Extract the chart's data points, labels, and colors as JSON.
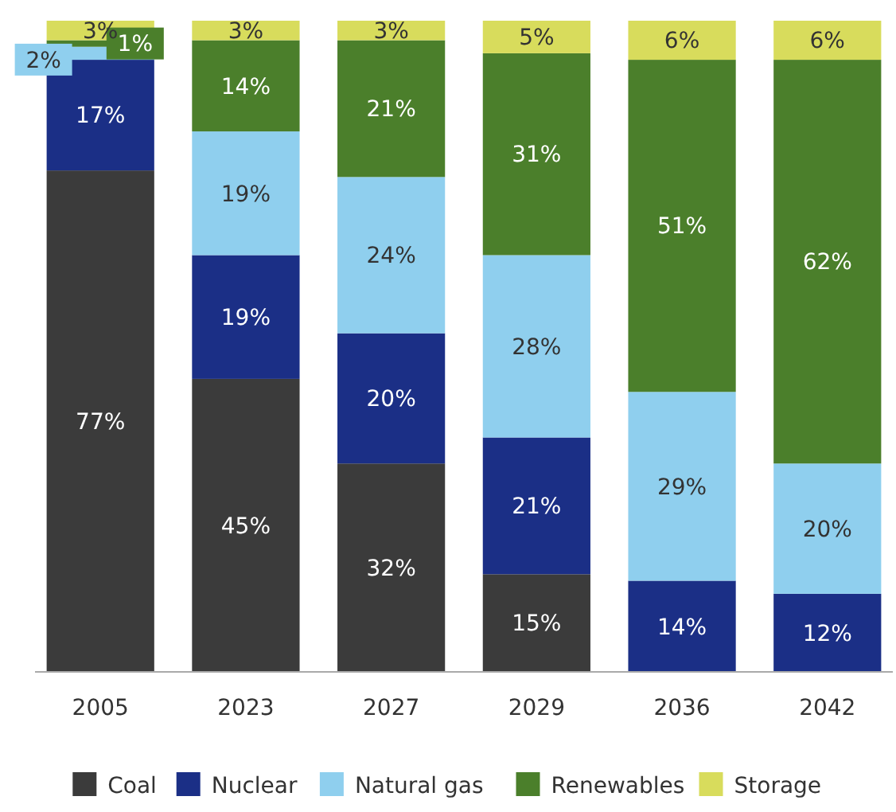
{
  "chart_data": {
    "type": "bar",
    "stacked": true,
    "legend": "bottom",
    "categories": [
      "2005",
      "2023",
      "2027",
      "2029",
      "2036",
      "2042"
    ],
    "series": [
      {
        "name": "Coal",
        "color": "#3b3b3b",
        "values": [
          77,
          45,
          32,
          15,
          null,
          null
        ],
        "value_labels": [
          "77%",
          "45%",
          "32%",
          "15%",
          null,
          null
        ]
      },
      {
        "name": "Nuclear",
        "color": "#1b2f86",
        "values": [
          17,
          19,
          20,
          21,
          14,
          12
        ],
        "value_labels": [
          "17%",
          "19%",
          "20%",
          "21%",
          "14%",
          "12%"
        ]
      },
      {
        "name": "Natural gas",
        "color": "#8fcfee",
        "values": [
          2,
          19,
          24,
          28,
          29,
          20
        ],
        "value_labels": [
          "2%",
          "19%",
          "24%",
          "28%",
          "29%",
          "20%"
        ]
      },
      {
        "name": "Renewables",
        "color": "#4b7f2b",
        "values": [
          1,
          14,
          21,
          31,
          51,
          62
        ],
        "value_labels": [
          "1%",
          "14%",
          "21%",
          "31%",
          "51%",
          "62%"
        ]
      },
      {
        "name": "Storage",
        "color": "#d8dc5c",
        "values": [
          3,
          3,
          3,
          5,
          6,
          6
        ],
        "value_labels": [
          "3%",
          "3%",
          "3%",
          "5%",
          "6%",
          "6%"
        ]
      }
    ]
  }
}
